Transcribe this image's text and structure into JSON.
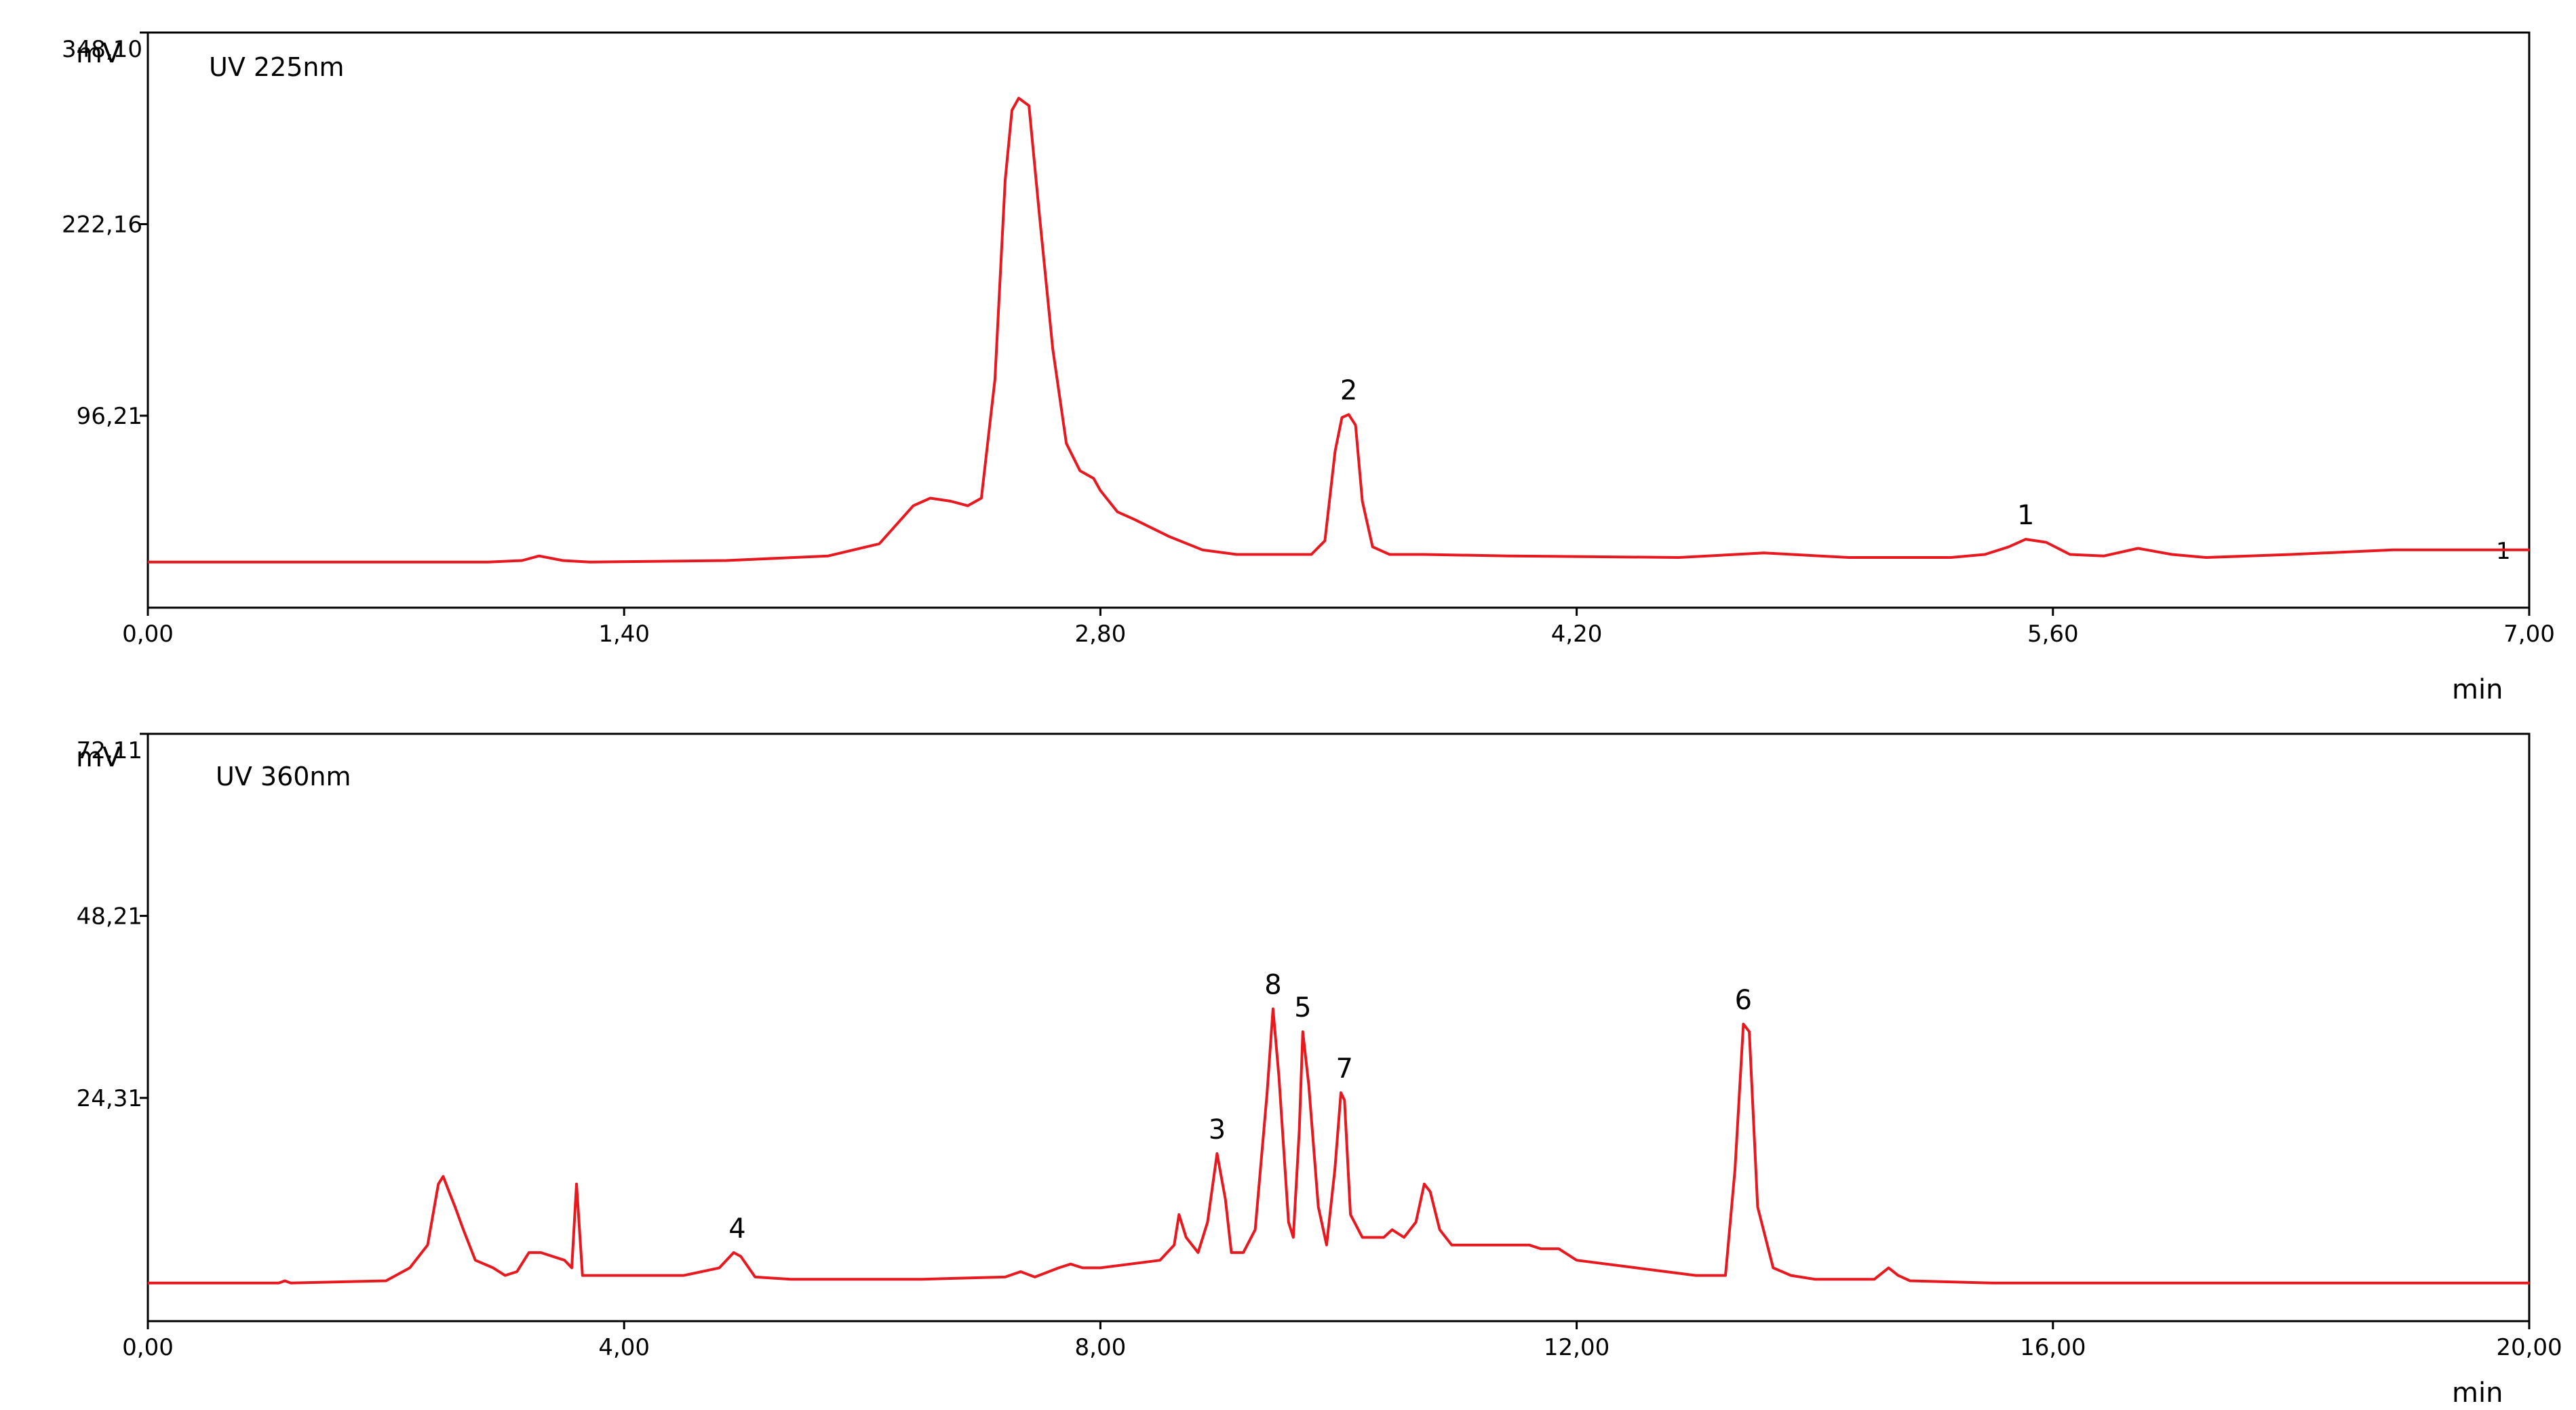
{
  "colors": {
    "trace": "#e8181e",
    "axis": "#000000",
    "background": "#ffffff"
  },
  "chart_data": [
    {
      "type": "line",
      "title": "UV 225nm",
      "xlabel": "min",
      "ylabel": "mV",
      "xlim": [
        0,
        7
      ],
      "ylim": [
        -30,
        348.1
      ],
      "xticks": [
        "0,00",
        "1,40",
        "2,80",
        "4,20",
        "5,60",
        "7,00"
      ],
      "yticks": [
        "96,21",
        "222,16",
        "348,10"
      ],
      "grid": false,
      "end_marker": "1",
      "peaks": [
        {
          "label": "2",
          "x": 3.53,
          "y": 97
        },
        {
          "label": "1",
          "x": 5.52,
          "y": 15
        }
      ],
      "series": [
        {
          "x": [
            0,
            1.0,
            1.1,
            1.15,
            1.22,
            1.3,
            1.7,
            2.0,
            2.15,
            2.25,
            2.3,
            2.36,
            2.41,
            2.45,
            2.49,
            2.52,
            2.54,
            2.56,
            2.59,
            2.62,
            2.66,
            2.7,
            2.74,
            2.78,
            2.8,
            2.85,
            2.9,
            3.0,
            3.1,
            3.2,
            3.3,
            3.42,
            3.46,
            3.49,
            3.51,
            3.53,
            3.55,
            3.57,
            3.6,
            3.65,
            3.75,
            4.0,
            4.5,
            4.75,
            5.0,
            5.3,
            5.4,
            5.47,
            5.52,
            5.58,
            5.65,
            5.75,
            5.85,
            5.95,
            6.05,
            6.3,
            6.6,
            7.0
          ],
          "y": [
            0,
            0,
            1,
            4,
            1,
            0,
            1,
            4,
            12,
            37,
            42,
            40,
            37,
            42,
            120,
            251,
            297,
            305,
            300,
            230,
            140,
            78,
            60,
            55,
            47,
            33,
            28,
            17,
            8,
            5,
            5,
            5,
            14,
            73,
            95,
            97,
            90,
            40,
            10,
            5,
            5,
            4,
            3,
            6,
            3,
            3,
            5,
            10,
            15,
            13,
            5,
            4,
            9,
            5,
            3,
            5,
            8,
            8
          ]
        }
      ]
    },
    {
      "type": "line",
      "title": "UV 360nm",
      "xlabel": "min",
      "ylabel": "mV",
      "xlim": [
        0,
        20
      ],
      "ylim": [
        -5,
        72.11
      ],
      "xticks": [
        "0,00",
        "4,00",
        "8,00",
        "12,00",
        "16,00",
        "20,00"
      ],
      "yticks": [
        "24,31",
        "48,21",
        "72,11"
      ],
      "grid": false,
      "peaks": [
        {
          "label": "4",
          "x": 4.95,
          "y": 4
        },
        {
          "label": "3",
          "x": 8.98,
          "y": 17
        },
        {
          "label": "8",
          "x": 9.45,
          "y": 36
        },
        {
          "label": "5",
          "x": 9.7,
          "y": 33
        },
        {
          "label": "7",
          "x": 10.05,
          "y": 25
        },
        {
          "label": "6",
          "x": 13.4,
          "y": 34
        }
      ],
      "series": [
        {
          "x": [
            0,
            1.1,
            1.15,
            1.2,
            2.0,
            2.2,
            2.35,
            2.44,
            2.48,
            2.53,
            2.58,
            2.65,
            2.75,
            2.9,
            3.0,
            3.1,
            3.2,
            3.3,
            3.5,
            3.56,
            3.6,
            3.65,
            3.85,
            4.5,
            4.8,
            4.92,
            4.98,
            5.1,
            5.4,
            6.5,
            7.2,
            7.33,
            7.45,
            7.65,
            7.75,
            7.85,
            8.0,
            8.5,
            8.62,
            8.66,
            8.72,
            8.82,
            8.9,
            8.98,
            9.05,
            9.1,
            9.2,
            9.3,
            9.4,
            9.45,
            9.5,
            9.58,
            9.62,
            9.67,
            9.7,
            9.75,
            9.83,
            9.9,
            9.97,
            10.02,
            10.05,
            10.1,
            10.2,
            10.38,
            10.45,
            10.55,
            10.65,
            10.72,
            10.77,
            10.85,
            10.95,
            11.6,
            11.7,
            11.85,
            12.0,
            12.5,
            13.0,
            13.25,
            13.33,
            13.4,
            13.45,
            13.52,
            13.65,
            13.8,
            14.0,
            14.5,
            14.62,
            14.7,
            14.8,
            15.5,
            20.0
          ],
          "y": [
            0,
            0,
            0.3,
            0,
            0.3,
            2,
            5,
            13,
            14,
            12,
            10,
            7,
            3,
            2,
            1,
            1.5,
            4,
            4,
            3,
            2,
            13,
            1,
            1,
            1,
            2,
            4,
            3.5,
            0.8,
            0.5,
            0.5,
            0.8,
            1.5,
            0.8,
            2,
            2.5,
            2,
            2,
            3,
            5,
            9,
            6,
            4,
            8,
            17,
            11,
            4,
            4,
            7,
            25,
            36,
            27,
            8,
            6,
            20,
            33,
            26,
            10,
            5,
            15,
            25,
            24,
            9,
            6,
            6,
            7,
            6,
            8,
            13,
            12,
            7,
            5,
            5,
            4.5,
            4.5,
            3,
            2,
            1,
            1,
            15,
            34,
            33,
            10,
            2,
            1,
            0.5,
            0.5,
            2,
            1,
            0.3,
            0,
            0
          ]
        }
      ]
    }
  ]
}
